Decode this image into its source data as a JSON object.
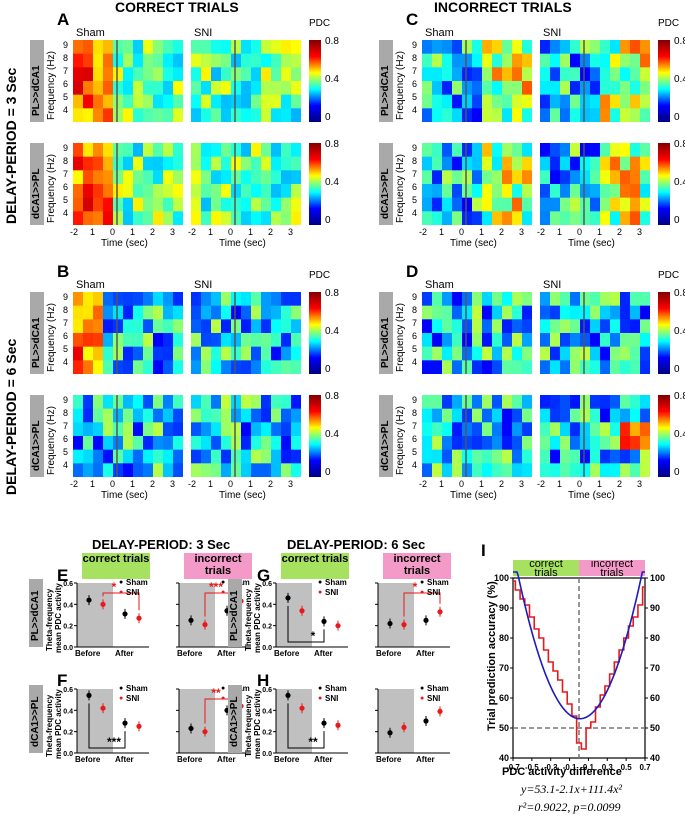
{
  "headers": {
    "correct": "CORRECT TRIALS",
    "incorrect": "INCORRECT TRIALS",
    "delay3": "DELAY-PERIOD = 3 Sec",
    "delay6": "DELAY-PERIOD = 6 Sec",
    "bottom_delay3": "DELAY-PERIOD: 3 Sec",
    "bottom_delay6": "DELAY-PERIOD: 6 Sec"
  },
  "panels": {
    "A": "A",
    "B": "B",
    "C": "C",
    "D": "D",
    "E": "E",
    "F": "F",
    "G": "G",
    "H": "H",
    "I": "I"
  },
  "heatmap_labels": {
    "sham": "Sham",
    "sni": "SNI",
    "pdc": "PDC",
    "freq_axis": "Frequency (Hz)",
    "time_axis": "Time (sec)",
    "pl_dca1": "PL>>dCA1",
    "dca1_pl": "dCA1>>PL",
    "x_ticks": [
      "-2",
      "1",
      "0",
      "1",
      "2",
      "3"
    ],
    "y_ticks": [
      "9",
      "8",
      "7",
      "6",
      "5",
      "4"
    ],
    "cbar_ticks": [
      "0.8",
      "0.4",
      "0"
    ]
  },
  "bar_labels": {
    "correct_trials": "correct trials",
    "incorrect_trials": "incorrect trials",
    "ylabel_line1": "Theta-frequency",
    "ylabel_line2": "mean PDC activity",
    "before": "Before",
    "after": "After",
    "legend_sham": "Sham",
    "legend_sni": "SNI",
    "y_ticks": [
      "0.6",
      "0.4",
      "0.2",
      "0.0"
    ],
    "pl_dca1": "PL>>dCA1",
    "dca1_pl": "dCA1>>PL"
  },
  "colors": {
    "sham": "#000000",
    "sni": "#e8191c",
    "correct_box": "#a6e25f",
    "incorrect_box": "#f49ac8",
    "shade": "#c0c0c0"
  },
  "dot_plots": [
    {
      "panel": "E",
      "group": "correct",
      "sham": [
        0.44,
        0.31
      ],
      "sni": [
        0.4,
        0.27
      ],
      "sig": "*",
      "sig_color": "red"
    },
    {
      "panel": "E",
      "group": "incorrect",
      "sham": [
        0.25,
        0.34
      ],
      "sni": [
        0.21,
        0.43
      ],
      "sig": "***",
      "sig_color": "red"
    },
    {
      "panel": "F",
      "group": "correct",
      "sham": [
        0.54,
        0.28
      ],
      "sni": [
        0.42,
        0.25
      ],
      "sig": "***",
      "sig_color": "black"
    },
    {
      "panel": "F",
      "group": "incorrect",
      "sham": [
        0.23,
        0.4
      ],
      "sni": [
        0.2,
        0.44
      ],
      "sig": "**",
      "sig_color": "red"
    },
    {
      "panel": "G",
      "group": "correct",
      "sham": [
        0.46,
        0.24
      ],
      "sni": [
        0.34,
        0.2
      ],
      "sig": "*",
      "sig_color": "black"
    },
    {
      "panel": "G",
      "group": "incorrect",
      "sham": [
        0.22,
        0.25
      ],
      "sni": [
        0.21,
        0.33
      ],
      "sig": "*",
      "sig_color": "red"
    },
    {
      "panel": "H",
      "group": "correct",
      "sham": [
        0.54,
        0.28
      ],
      "sni": [
        0.42,
        0.26
      ],
      "sig": "**",
      "sig_color": "black"
    },
    {
      "panel": "H",
      "group": "incorrect",
      "sham": [
        0.19,
        0.3
      ],
      "sni": [
        0.24,
        0.39
      ],
      "sig": "",
      "sig_color": "red"
    }
  ],
  "chart_data": {
    "type": "line",
    "panel": "I",
    "xlabel": "PDC activity difference",
    "ylabel": "Trial prediction accuracy (%)",
    "xlim": [
      -0.7,
      0.7
    ],
    "ylim": [
      40,
      100
    ],
    "x_ticks": [
      "-0.7",
      "-0.5",
      "-0.3",
      "-0.1",
      "0.1",
      "0.3",
      "0.5",
      "0.7"
    ],
    "y_ticks": [
      "100",
      "90",
      "80",
      "70",
      "60",
      "50",
      "40"
    ],
    "left_region": "correct trials",
    "right_region": "incorrect trials",
    "threshold_y": 50,
    "threshold_x": 0,
    "fit": {
      "a": 53.1,
      "b": -2.1,
      "c": 111.4
    },
    "equation_line1": "y=53.1-2.1x+111.4x²",
    "equation_line2": "r²=0.9022, p=0.0099",
    "step_x": [
      -0.7,
      -0.65,
      -0.6,
      -0.55,
      -0.5,
      -0.45,
      -0.4,
      -0.35,
      -0.3,
      -0.25,
      -0.2,
      -0.15,
      -0.1,
      -0.05,
      0.0,
      0.05,
      0.1,
      0.15,
      0.2,
      0.25,
      0.3,
      0.35,
      0.4,
      0.45,
      0.5,
      0.55,
      0.6,
      0.65,
      0.7
    ],
    "step_y": [
      99,
      96,
      93,
      91,
      87,
      83,
      80,
      76,
      72,
      69,
      66,
      62,
      58,
      54,
      45,
      43,
      50,
      52,
      57,
      61,
      64,
      68,
      72,
      76,
      80,
      84,
      87,
      91,
      97
    ]
  }
}
